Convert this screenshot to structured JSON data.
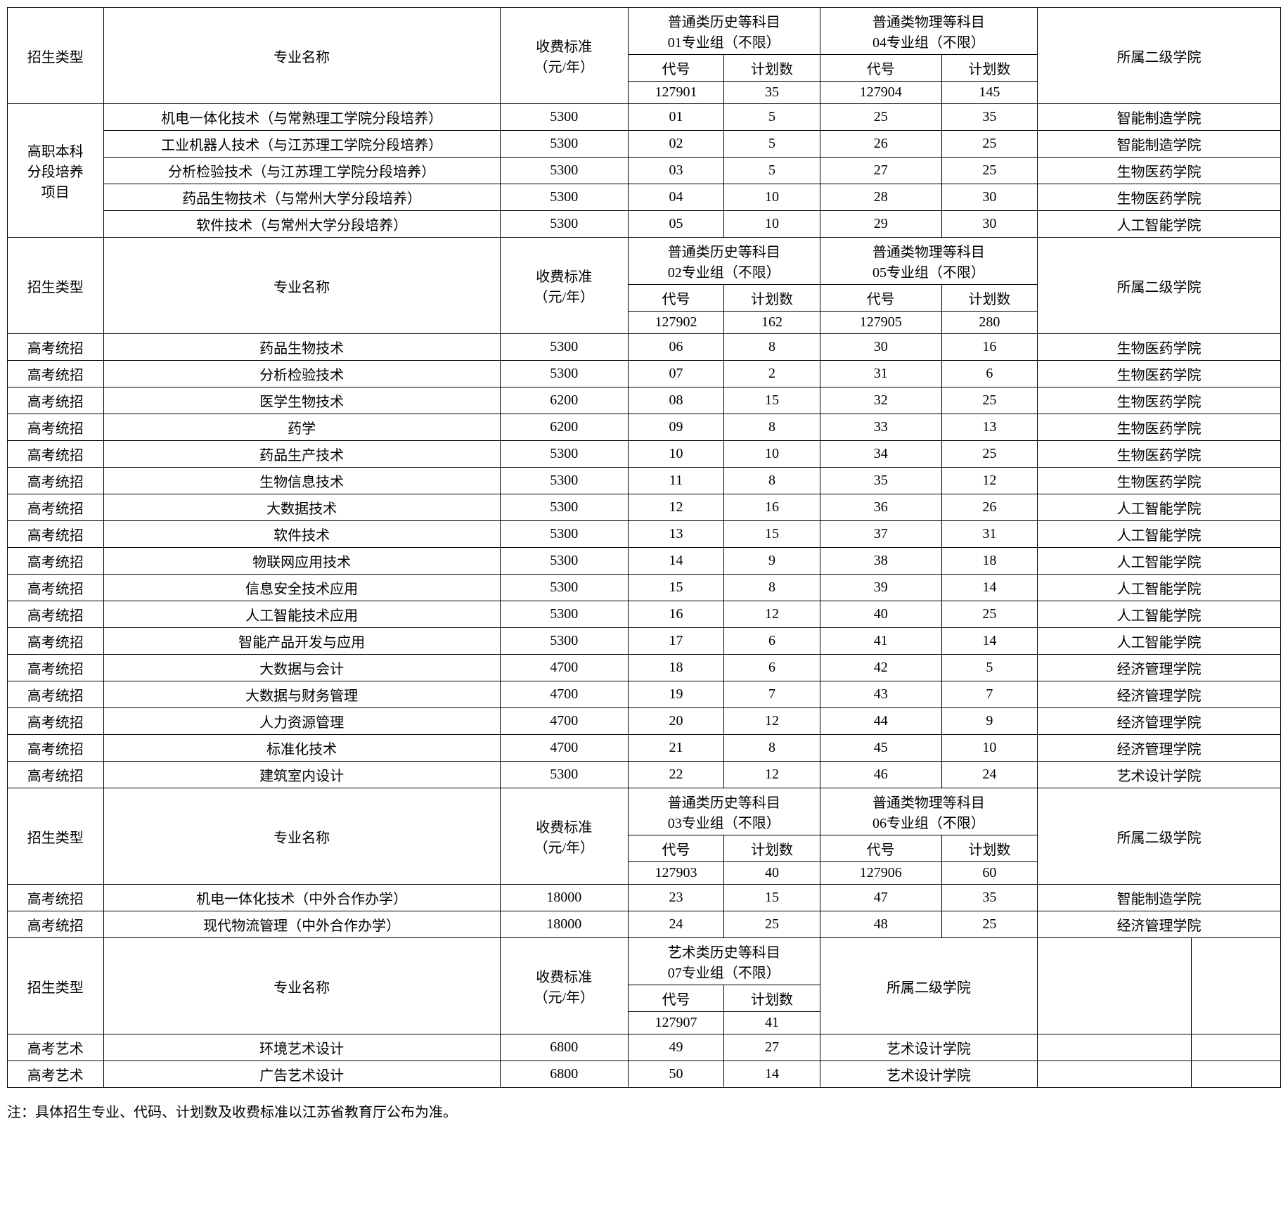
{
  "headers": {
    "type": "招生类型",
    "major": "专业名称",
    "fee": "收费标准\n（元/年）",
    "college": "所属二级学院",
    "code": "代号",
    "plan": "计划数",
    "g01": "普通类历史等科目\n01专业组（不限）",
    "g02": "普通类历史等科目\n02专业组（不限）",
    "g03": "普通类历史等科目\n03专业组（不限）",
    "g04": "普通类物理等科目\n04专业组（不限）",
    "g05": "普通类物理等科目\n05专业组（不限）",
    "g06": "普通类物理等科目\n06专业组（不限）",
    "g07": "艺术类历史等科目\n07专业组（不限）"
  },
  "section1": {
    "typeLabel": "高职本科\n分段培养\n项目",
    "groupCodeA": "127901",
    "groupPlanA": "35",
    "groupCodeB": "127904",
    "groupPlanB": "145",
    "rows": [
      {
        "major": "机电一体化技术（与常熟理工学院分段培养）",
        "fee": "5300",
        "ca": "01",
        "pa": "5",
        "cb": "25",
        "pb": "35",
        "col": "智能制造学院"
      },
      {
        "major": "工业机器人技术（与江苏理工学院分段培养）",
        "fee": "5300",
        "ca": "02",
        "pa": "5",
        "cb": "26",
        "pb": "25",
        "col": "智能制造学院"
      },
      {
        "major": "分析检验技术（与江苏理工学院分段培养）",
        "fee": "5300",
        "ca": "03",
        "pa": "5",
        "cb": "27",
        "pb": "25",
        "col": "生物医药学院"
      },
      {
        "major": "药品生物技术（与常州大学分段培养）",
        "fee": "5300",
        "ca": "04",
        "pa": "10",
        "cb": "28",
        "pb": "30",
        "col": "生物医药学院"
      },
      {
        "major": "软件技术（与常州大学分段培养）",
        "fee": "5300",
        "ca": "05",
        "pa": "10",
        "cb": "29",
        "pb": "30",
        "col": "人工智能学院"
      }
    ]
  },
  "section2": {
    "typeLabel": "高考统招",
    "groupCodeA": "127902",
    "groupPlanA": "162",
    "groupCodeB": "127905",
    "groupPlanB": "280",
    "rows": [
      {
        "major": "药品生物技术",
        "fee": "5300",
        "ca": "06",
        "pa": "8",
        "cb": "30",
        "pb": "16",
        "col": "生物医药学院"
      },
      {
        "major": "分析检验技术",
        "fee": "5300",
        "ca": "07",
        "pa": "2",
        "cb": "31",
        "pb": "6",
        "col": "生物医药学院"
      },
      {
        "major": "医学生物技术",
        "fee": "6200",
        "ca": "08",
        "pa": "15",
        "cb": "32",
        "pb": "25",
        "col": "生物医药学院"
      },
      {
        "major": "药学",
        "fee": "6200",
        "ca": "09",
        "pa": "8",
        "cb": "33",
        "pb": "13",
        "col": "生物医药学院"
      },
      {
        "major": "药品生产技术",
        "fee": "5300",
        "ca": "10",
        "pa": "10",
        "cb": "34",
        "pb": "25",
        "col": "生物医药学院"
      },
      {
        "major": "生物信息技术",
        "fee": "5300",
        "ca": "11",
        "pa": "8",
        "cb": "35",
        "pb": "12",
        "col": "生物医药学院"
      },
      {
        "major": "大数据技术",
        "fee": "5300",
        "ca": "12",
        "pa": "16",
        "cb": "36",
        "pb": "26",
        "col": "人工智能学院"
      },
      {
        "major": "软件技术",
        "fee": "5300",
        "ca": "13",
        "pa": "15",
        "cb": "37",
        "pb": "31",
        "col": "人工智能学院"
      },
      {
        "major": "物联网应用技术",
        "fee": "5300",
        "ca": "14",
        "pa": "9",
        "cb": "38",
        "pb": "18",
        "col": "人工智能学院"
      },
      {
        "major": "信息安全技术应用",
        "fee": "5300",
        "ca": "15",
        "pa": "8",
        "cb": "39",
        "pb": "14",
        "col": "人工智能学院"
      },
      {
        "major": "人工智能技术应用",
        "fee": "5300",
        "ca": "16",
        "pa": "12",
        "cb": "40",
        "pb": "25",
        "col": "人工智能学院"
      },
      {
        "major": "智能产品开发与应用",
        "fee": "5300",
        "ca": "17",
        "pa": "6",
        "cb": "41",
        "pb": "14",
        "col": "人工智能学院"
      },
      {
        "major": "大数据与会计",
        "fee": "4700",
        "ca": "18",
        "pa": "6",
        "cb": "42",
        "pb": "5",
        "col": "经济管理学院"
      },
      {
        "major": "大数据与财务管理",
        "fee": "4700",
        "ca": "19",
        "pa": "7",
        "cb": "43",
        "pb": "7",
        "col": "经济管理学院"
      },
      {
        "major": "人力资源管理",
        "fee": "4700",
        "ca": "20",
        "pa": "12",
        "cb": "44",
        "pb": "9",
        "col": "经济管理学院"
      },
      {
        "major": "标准化技术",
        "fee": "4700",
        "ca": "21",
        "pa": "8",
        "cb": "45",
        "pb": "10",
        "col": "经济管理学院"
      },
      {
        "major": "建筑室内设计",
        "fee": "5300",
        "ca": "22",
        "pa": "12",
        "cb": "46",
        "pb": "24",
        "col": "艺术设计学院"
      }
    ]
  },
  "section3": {
    "typeLabel": "高考统招",
    "groupCodeA": "127903",
    "groupPlanA": "40",
    "groupCodeB": "127906",
    "groupPlanB": "60",
    "rows": [
      {
        "major": "机电一体化技术（中外合作办学）",
        "fee": "18000",
        "ca": "23",
        "pa": "15",
        "cb": "47",
        "pb": "35",
        "col": "智能制造学院"
      },
      {
        "major": "现代物流管理（中外合作办学）",
        "fee": "18000",
        "ca": "24",
        "pa": "25",
        "cb": "48",
        "pb": "25",
        "col": "经济管理学院"
      }
    ]
  },
  "section4": {
    "typeLabel": "高考艺术",
    "groupCodeA": "127907",
    "groupPlanA": "41",
    "rows": [
      {
        "major": "环境艺术设计",
        "fee": "6800",
        "ca": "49",
        "pa": "27",
        "col": "艺术设计学院"
      },
      {
        "major": "广告艺术设计",
        "fee": "6800",
        "ca": "50",
        "pa": "14",
        "col": "艺术设计学院"
      }
    ]
  },
  "footnote": "注：具体招生专业、代码、计划数及收费标准以江苏省教育厅公布为准。"
}
